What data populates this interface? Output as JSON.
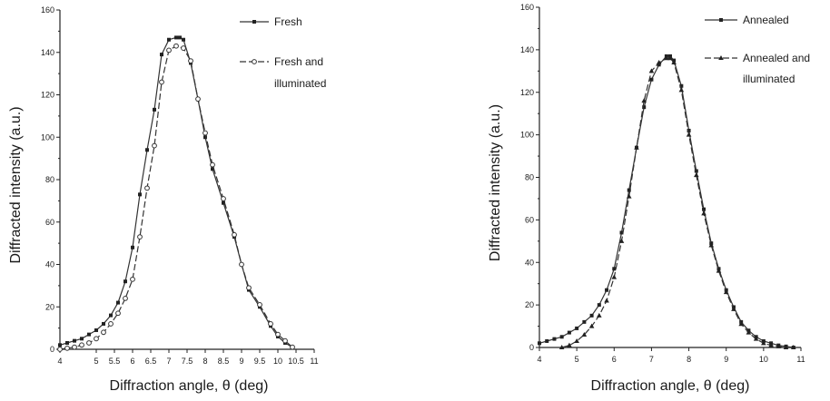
{
  "chart_data": [
    {
      "type": "line",
      "xlabel": "Diffraction angle, θ  (deg)",
      "ylabel": "Diffracted intensity  (a.u.)",
      "xlim": [
        4,
        11
      ],
      "ylim": [
        0,
        160
      ],
      "xticks": [
        "4",
        "5",
        "5.5",
        "6",
        "6.5",
        "7",
        "7.5",
        "8",
        "8.5",
        "9",
        "9.5",
        "10",
        "10.5",
        "11"
      ],
      "yticks": [
        "0",
        "20",
        "40",
        "60",
        "80",
        "100",
        "120",
        "140",
        "160"
      ],
      "grid": false,
      "legend_position": "top-right",
      "series": [
        {
          "name": "Fresh",
          "marker": "filled-square",
          "x": [
            4.0,
            4.2,
            4.4,
            4.6,
            4.8,
            5.0,
            5.2,
            5.4,
            5.6,
            5.8,
            6.0,
            6.2,
            6.4,
            6.6,
            6.8,
            7.0,
            7.2,
            7.3,
            7.4,
            7.6,
            7.8,
            8.0,
            8.2,
            8.5,
            8.8,
            9.0,
            9.2,
            9.5,
            9.8,
            10.0,
            10.2,
            10.4
          ],
          "y": [
            2,
            3,
            4,
            5,
            7,
            9,
            12,
            16,
            22,
            32,
            48,
            73,
            94,
            113,
            139,
            146,
            147,
            147,
            146,
            135,
            118,
            100,
            85,
            69,
            53,
            40,
            28,
            20,
            11,
            6,
            3,
            1
          ]
        },
        {
          "name": "Fresh and illuminated",
          "marker": "open-circle",
          "x": [
            4.0,
            4.2,
            4.4,
            4.6,
            4.8,
            5.0,
            5.2,
            5.4,
            5.6,
            5.8,
            6.0,
            6.2,
            6.4,
            6.6,
            6.8,
            7.0,
            7.2,
            7.4,
            7.6,
            7.8,
            8.0,
            8.2,
            8.5,
            8.8,
            9.0,
            9.2,
            9.5,
            9.8,
            10.0,
            10.2,
            10.4
          ],
          "y": [
            0,
            0.5,
            1,
            2,
            3,
            5,
            8,
            12,
            17,
            24,
            33,
            53,
            76,
            96,
            126,
            141,
            143,
            142,
            136,
            118,
            102,
            87,
            71,
            54,
            40,
            29,
            21,
            12,
            7,
            4,
            1
          ]
        }
      ]
    },
    {
      "type": "line",
      "xlabel": "Diffraction angle, θ  (deg)",
      "ylabel": "Diffracted intensity  (a.u.)",
      "xlim": [
        4,
        11
      ],
      "ylim": [
        0,
        160
      ],
      "xticks": [
        "4",
        "5",
        "6",
        "7",
        "8",
        "9",
        "10",
        "11"
      ],
      "yticks": [
        "0",
        "20",
        "40",
        "60",
        "80",
        "100",
        "120",
        "140",
        "160"
      ],
      "grid": false,
      "legend_position": "top-right",
      "series": [
        {
          "name": "Annealed",
          "marker": "filled-square",
          "x": [
            4.0,
            4.2,
            4.4,
            4.6,
            4.8,
            5.0,
            5.2,
            5.4,
            5.6,
            5.8,
            6.0,
            6.2,
            6.4,
            6.6,
            6.8,
            7.0,
            7.2,
            7.4,
            7.5,
            7.6,
            7.8,
            8.0,
            8.2,
            8.4,
            8.6,
            8.8,
            9.0,
            9.2,
            9.4,
            9.6,
            9.8,
            10.0,
            10.2,
            10.4,
            10.6,
            10.8
          ],
          "y": [
            2,
            3,
            4,
            5,
            7,
            9,
            12,
            15,
            20,
            27,
            37,
            54,
            74,
            94,
            113,
            126,
            133,
            137,
            137,
            135,
            123,
            102,
            83,
            65,
            49,
            37,
            27,
            19,
            12,
            8,
            5,
            3,
            2,
            1,
            0.5,
            0
          ]
        },
        {
          "name": "Annealed and illuminated",
          "marker": "filled-triangle",
          "x": [
            4.6,
            4.8,
            5.0,
            5.2,
            5.4,
            5.6,
            5.8,
            6.0,
            6.2,
            6.4,
            6.6,
            6.8,
            7.0,
            7.2,
            7.4,
            7.5,
            7.6,
            7.8,
            8.0,
            8.2,
            8.4,
            8.6,
            8.8,
            9.0,
            9.2,
            9.4,
            9.6,
            9.8,
            10.0,
            10.2,
            10.4,
            10.6,
            10.8
          ],
          "y": [
            0,
            1,
            3,
            6,
            10,
            15,
            22,
            33,
            50,
            71,
            94,
            116,
            130,
            134,
            136,
            136,
            134,
            121,
            100,
            81,
            63,
            48,
            36,
            26,
            18,
            11,
            7,
            4,
            2,
            1,
            0.5,
            0,
            0
          ]
        }
      ]
    }
  ]
}
